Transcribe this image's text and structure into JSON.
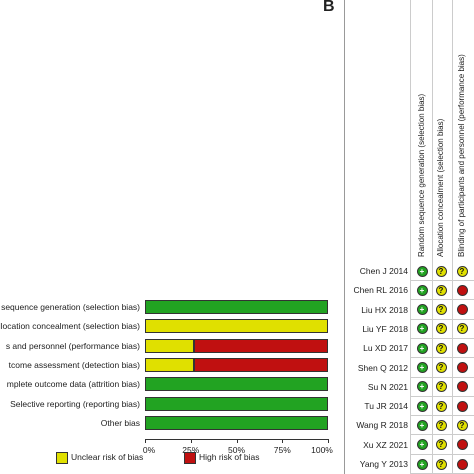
{
  "colors": {
    "low": "#22a322",
    "unclear": "#e0e000",
    "high": "#c01010"
  },
  "panel_a": {
    "chart_data": {
      "type": "bar",
      "orientation": "horizontal-stacked-percent",
      "categories": [
        "sequence generation (selection bias)",
        "llocation concealment (selection bias)",
        "s and personnel (performance bias)",
        "tcome assessment (detection bias)",
        "mplete outcome data (attrition bias)",
        "Selective reporting (reporting bias)",
        "Other bias"
      ],
      "series": [
        {
          "key": "low",
          "values": [
            100,
            0,
            0,
            0,
            100,
            100,
            100
          ]
        },
        {
          "key": "unclear",
          "name": "Unclear risk of bias",
          "values": [
            0,
            100,
            27,
            27,
            0,
            0,
            0
          ]
        },
        {
          "key": "high",
          "name": "High risk of bias",
          "values": [
            0,
            0,
            73,
            73,
            0,
            0,
            0
          ]
        }
      ],
      "xticks": [
        "0%",
        "25%",
        "50%",
        "75%",
        "100%"
      ],
      "xlim": [
        0,
        100
      ]
    },
    "legend": {
      "unclear": "Unclear risk of bias",
      "high": "High risk of bias"
    }
  },
  "panel_b": {
    "letter": "B",
    "columns": [
      "Random sequence generation (selection bias)",
      "Allocation concealment (selection bias)",
      "Blinding of participants and personnel (performance bias)"
    ],
    "studies": [
      {
        "name": "Chen J 2014",
        "ratings": [
          "low",
          "unclear",
          "unclear"
        ]
      },
      {
        "name": "Chen RL 2016",
        "ratings": [
          "low",
          "unclear",
          "high"
        ]
      },
      {
        "name": "Liu HX 2018",
        "ratings": [
          "low",
          "unclear",
          "high"
        ]
      },
      {
        "name": "Liu YF 2018",
        "ratings": [
          "low",
          "unclear",
          "unclear"
        ]
      },
      {
        "name": "Lu XD 2017",
        "ratings": [
          "low",
          "unclear",
          "high"
        ]
      },
      {
        "name": "Shen Q 2012",
        "ratings": [
          "low",
          "unclear",
          "high"
        ]
      },
      {
        "name": "Su N 2021",
        "ratings": [
          "low",
          "unclear",
          "high"
        ]
      },
      {
        "name": "Tu JR 2014",
        "ratings": [
          "low",
          "unclear",
          "high"
        ]
      },
      {
        "name": "Wang R 2018",
        "ratings": [
          "low",
          "unclear",
          "unclear"
        ]
      },
      {
        "name": "Xu XZ 2021",
        "ratings": [
          "low",
          "unclear",
          "high"
        ]
      },
      {
        "name": "Yang Y 2013",
        "ratings": [
          "low",
          "unclear",
          "high"
        ]
      }
    ],
    "symbols": {
      "low": "+",
      "unclear": "?",
      "high": ""
    }
  }
}
